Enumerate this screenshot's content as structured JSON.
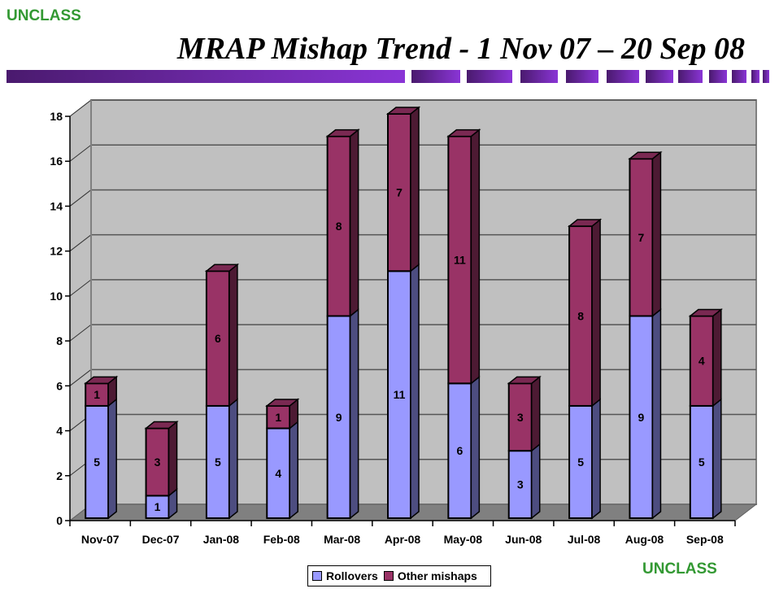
{
  "classification": {
    "top_label": "UNCLASS",
    "bottom_label": "UNCLASS",
    "color": "#339933"
  },
  "header": {
    "title": "MRAP Mishap Trend - 1 Nov 07 – 20 Sep 08"
  },
  "legend": {
    "items": [
      {
        "label": "Rollovers",
        "color": "#9999ff"
      },
      {
        "label": "Other mishaps",
        "color": "#993366"
      }
    ]
  },
  "chart_data": {
    "type": "bar",
    "stacked": true,
    "style": "3d",
    "title": "MRAP Mishap Trend - 1 Nov 07 – 20 Sep 08",
    "xlabel": "",
    "ylabel": "",
    "ylim": [
      0,
      18
    ],
    "yticks": [
      0,
      2,
      4,
      6,
      8,
      10,
      12,
      14,
      16,
      18
    ],
    "grid": true,
    "legend_position": "bottom",
    "categories": [
      "Nov-07",
      "Dec-07",
      "Jan-08",
      "Feb-08",
      "Mar-08",
      "Apr-08",
      "May-08",
      "Jun-08",
      "Jul-08",
      "Aug-08",
      "Sep-08"
    ],
    "series": [
      {
        "name": "Rollovers",
        "color": "#9999ff",
        "values": [
          5,
          1,
          5,
          4,
          9,
          11,
          6,
          3,
          5,
          9,
          5
        ]
      },
      {
        "name": "Other mishaps",
        "color": "#993366",
        "values": [
          1,
          3,
          6,
          1,
          8,
          7,
          11,
          3,
          8,
          7,
          4
        ]
      }
    ],
    "totals": [
      6,
      4,
      11,
      5,
      17,
      18,
      17,
      6,
      13,
      16,
      9
    ]
  }
}
